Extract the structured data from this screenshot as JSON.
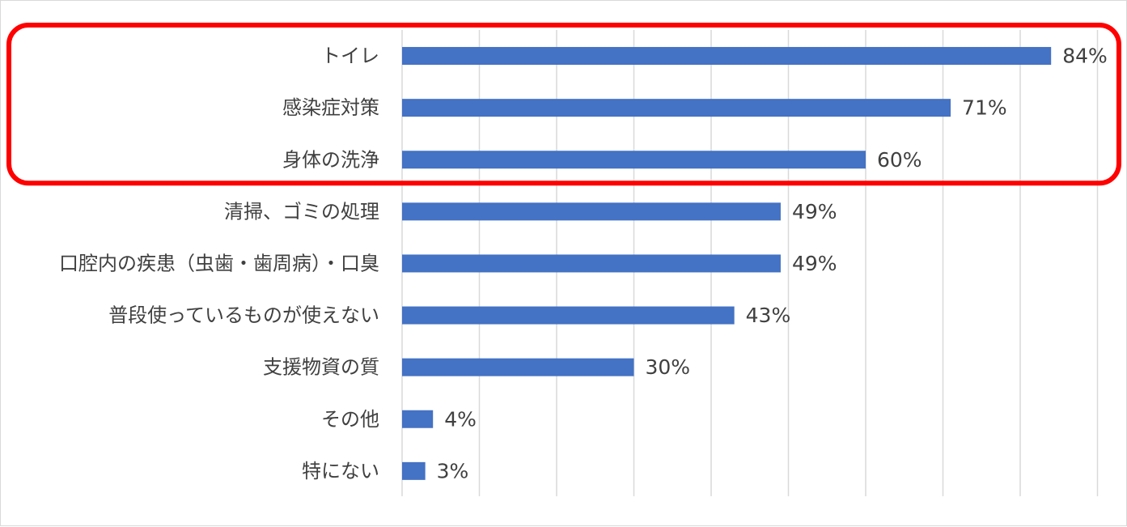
{
  "chart_data": {
    "type": "bar",
    "orientation": "horizontal",
    "title": "",
    "xlabel": "",
    "ylabel": "",
    "categories": [
      "トイレ",
      "感染症対策",
      "身体の洗浄",
      "清掃、ゴミの処理",
      "口腔内の疾患（虫歯・歯周病）・口臭",
      "普段使っているものが使えない",
      "支援物資の質",
      "その他",
      "特にない"
    ],
    "values": [
      84,
      71,
      60,
      49,
      49,
      43,
      30,
      4,
      3
    ],
    "value_labels": [
      "84%",
      "71%",
      "60%",
      "49%",
      "49%",
      "43%",
      "30%",
      "4%",
      "3%"
    ],
    "xlim": [
      0,
      90
    ],
    "grid": true,
    "legend": "none",
    "bar_color": "#4472c4",
    "highlight": {
      "categories": [
        "トイレ",
        "感染症対策",
        "身体の洗浄"
      ],
      "color": "#ff0000",
      "shape": "rounded-rectangle"
    }
  }
}
